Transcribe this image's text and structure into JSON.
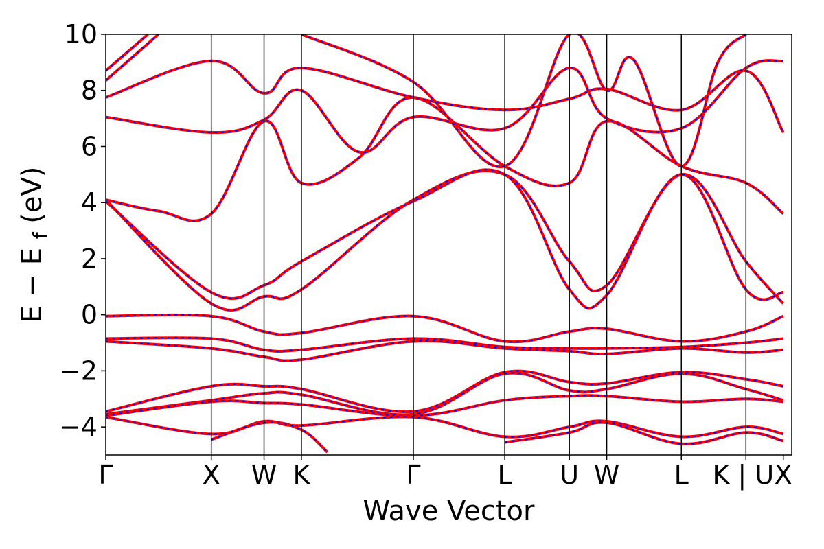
{
  "chart_data": {
    "type": "line",
    "title": "",
    "xlabel": "Wave Vector",
    "ylabel_main": "E − E",
    "ylabel_sub": "f",
    "ylabel_unit": "(eV)",
    "ylim": [
      -5,
      10
    ],
    "yticks": [
      -4,
      -2,
      0,
      2,
      4,
      6,
      8,
      10
    ],
    "ytick_labels": [
      "−4",
      "−2",
      "0",
      "2",
      "4",
      "6",
      "8",
      "10"
    ],
    "xlim": [
      0,
      6.5
    ],
    "kpoints": [
      {
        "label": "Γ",
        "x": 0.0
      },
      {
        "label": "X",
        "x": 1.0
      },
      {
        "label": "W",
        "x": 1.5
      },
      {
        "label": "K",
        "x": 1.854
      },
      {
        "label": "Γ",
        "x": 2.915
      },
      {
        "label": "L",
        "x": 3.781
      },
      {
        "label": "U",
        "x": 4.393
      },
      {
        "label": "W",
        "x": 4.747
      },
      {
        "label": "L",
        "x": 5.454
      },
      {
        "label": "K | U",
        "x": 6.066
      },
      {
        "label": "X",
        "x": 6.42
      }
    ],
    "grid": false,
    "legend": "none",
    "series_colors": {
      "primary": "#ff0000",
      "overlay": "#0000ff"
    },
    "bands": [
      [
        [
          0,
          -0.05
        ],
        [
          1.0,
          -0.05
        ],
        [
          1.5,
          -0.6
        ],
        [
          1.854,
          -0.65
        ],
        [
          2.915,
          -0.05
        ],
        [
          3.781,
          -0.95
        ],
        [
          4.393,
          -0.6
        ],
        [
          4.747,
          -0.5
        ],
        [
          5.454,
          -0.95
        ],
        [
          6.066,
          -0.6
        ],
        [
          6.42,
          -0.05
        ]
      ],
      [
        [
          0,
          -0.85
        ],
        [
          1.0,
          -0.85
        ],
        [
          1.5,
          -1.25
        ],
        [
          1.854,
          -1.25
        ],
        [
          2.915,
          -0.85
        ],
        [
          3.781,
          -1.15
        ],
        [
          4.393,
          -1.2
        ],
        [
          4.747,
          -1.2
        ],
        [
          5.454,
          -1.15
        ],
        [
          6.066,
          -1.0
        ],
        [
          6.42,
          -0.85
        ]
      ],
      [
        [
          0,
          -0.95
        ],
        [
          1.0,
          -1.2
        ],
        [
          1.5,
          -1.5
        ],
        [
          1.854,
          -1.6
        ],
        [
          2.915,
          -0.95
        ],
        [
          3.781,
          -1.2
        ],
        [
          4.393,
          -1.3
        ],
        [
          4.747,
          -1.4
        ],
        [
          5.454,
          -1.2
        ],
        [
          6.066,
          -1.35
        ],
        [
          6.42,
          -1.25
        ]
      ],
      [
        [
          0,
          -3.45
        ],
        [
          1.0,
          -2.55
        ],
        [
          1.5,
          -2.55
        ],
        [
          1.854,
          -2.65
        ],
        [
          2.915,
          -3.45
        ],
        [
          3.781,
          -2.05
        ],
        [
          4.393,
          -2.4
        ],
        [
          4.747,
          -2.45
        ],
        [
          5.454,
          -2.05
        ],
        [
          6.066,
          -2.3
        ],
        [
          6.42,
          -2.55
        ]
      ],
      [
        [
          0,
          -3.55
        ],
        [
          1.0,
          -3.05
        ],
        [
          1.5,
          -2.8
        ],
        [
          1.854,
          -2.85
        ],
        [
          2.915,
          -3.55
        ],
        [
          3.781,
          -2.1
        ],
        [
          4.393,
          -2.7
        ],
        [
          4.747,
          -2.65
        ],
        [
          5.454,
          -2.1
        ],
        [
          6.066,
          -2.65
        ],
        [
          6.42,
          -3.05
        ]
      ],
      [
        [
          0,
          -3.6
        ],
        [
          1.0,
          -3.1
        ],
        [
          1.5,
          -3.15
        ],
        [
          1.854,
          -3.2
        ],
        [
          2.915,
          -3.6
        ],
        [
          3.781,
          -3.05
        ],
        [
          4.393,
          -2.9
        ],
        [
          4.747,
          -2.9
        ],
        [
          5.454,
          -3.1
        ],
        [
          6.066,
          -3.0
        ],
        [
          6.42,
          -3.1
        ]
      ],
      [
        [
          0,
          -3.65
        ],
        [
          1.0,
          -4.25
        ],
        [
          1.5,
          -3.8
        ],
        [
          1.854,
          -3.95
        ],
        [
          2.915,
          -3.65
        ],
        [
          3.781,
          -4.35
        ],
        [
          4.393,
          -4.0
        ],
        [
          4.747,
          -3.8
        ],
        [
          5.454,
          -4.35
        ],
        [
          6.066,
          -4.0
        ],
        [
          6.42,
          -4.25
        ]
      ],
      [
        [
          1.0,
          -4.45
        ],
        [
          1.5,
          -3.85
        ],
        [
          1.854,
          -4.1
        ],
        [
          2.1,
          -4.9
        ]
      ],
      [
        [
          3.781,
          -4.55
        ],
        [
          4.393,
          -4.2
        ],
        [
          4.747,
          -3.85
        ],
        [
          5.454,
          -4.6
        ],
        [
          6.066,
          -4.2
        ],
        [
          6.42,
          -4.5
        ]
      ],
      [
        [
          0,
          4.1
        ],
        [
          1.0,
          0.4
        ],
        [
          1.5,
          0.65
        ],
        [
          1.854,
          0.9
        ],
        [
          2.915,
          4.1
        ],
        [
          3.781,
          5.0
        ],
        [
          4.393,
          1.9
        ],
        [
          4.747,
          1.05
        ],
        [
          5.454,
          5.0
        ],
        [
          6.066,
          1.9
        ],
        [
          6.42,
          0.4
        ]
      ],
      [
        [
          0,
          4.05
        ],
        [
          1.0,
          0.8
        ],
        [
          1.5,
          1.05
        ],
        [
          1.854,
          1.9
        ],
        [
          2.915,
          4.05
        ],
        [
          3.781,
          5.0
        ],
        [
          4.393,
          0.9
        ],
        [
          4.747,
          0.7
        ],
        [
          5.454,
          5.0
        ],
        [
          6.066,
          0.9
        ],
        [
          6.42,
          0.8
        ]
      ],
      [
        [
          0,
          4.1
        ],
        [
          0.5,
          3.7
        ],
        [
          1.0,
          3.6
        ],
        [
          1.5,
          6.9
        ],
        [
          1.854,
          4.7
        ],
        [
          2.4,
          5.6
        ],
        [
          2.915,
          7.75
        ],
        [
          3.781,
          5.3
        ],
        [
          4.393,
          4.7
        ],
        [
          4.747,
          6.9
        ],
        [
          5.454,
          5.3
        ],
        [
          6.066,
          4.7
        ],
        [
          6.42,
          3.6
        ]
      ],
      [
        [
          0,
          7.05
        ],
        [
          1.0,
          6.5
        ],
        [
          1.5,
          6.95
        ],
        [
          1.854,
          8.0
        ],
        [
          2.4,
          5.8
        ],
        [
          2.915,
          7.05
        ],
        [
          3.781,
          6.65
        ],
        [
          4.393,
          8.8
        ],
        [
          4.747,
          7.0
        ],
        [
          5.454,
          6.65
        ],
        [
          6.066,
          8.8
        ],
        [
          6.42,
          9.05
        ]
      ],
      [
        [
          0,
          7.75
        ],
        [
          1.0,
          9.05
        ],
        [
          1.5,
          7.9
        ],
        [
          1.854,
          8.8
        ],
        [
          2.915,
          7.75
        ],
        [
          3.781,
          7.3
        ],
        [
          4.393,
          7.7
        ],
        [
          4.747,
          8.05
        ],
        [
          5.454,
          7.3
        ],
        [
          6.066,
          8.7
        ],
        [
          6.42,
          6.5
        ]
      ],
      [
        [
          0,
          8.35
        ],
        [
          0.5,
          10.0
        ]
      ],
      [
        [
          0,
          8.7
        ],
        [
          0.4,
          10.0
        ]
      ],
      [
        [
          1.854,
          10.0
        ],
        [
          2.915,
          8.3
        ],
        [
          3.781,
          5.3
        ],
        [
          4.393,
          10.0
        ],
        [
          4.747,
          8.0
        ],
        [
          5.0,
          9.1
        ],
        [
          5.454,
          5.3
        ],
        [
          5.8,
          9.0
        ],
        [
          6.066,
          10.0
        ]
      ]
    ]
  }
}
